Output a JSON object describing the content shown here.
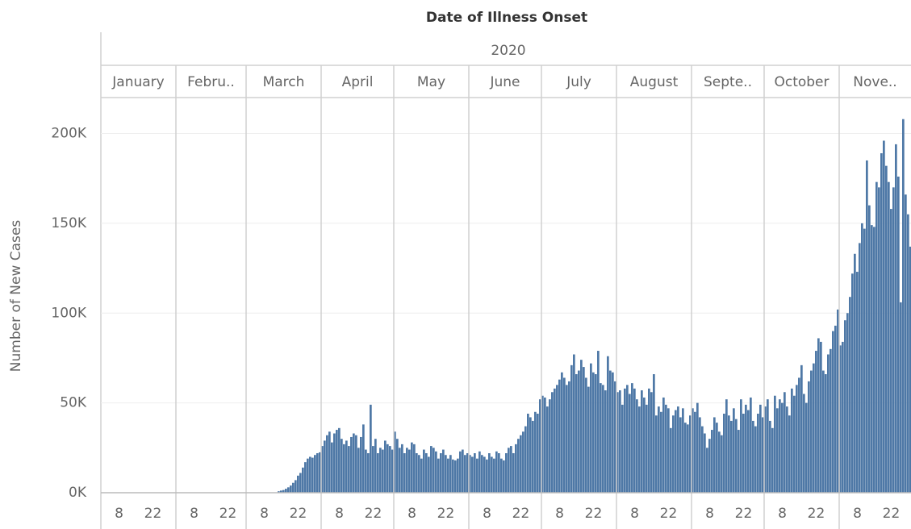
{
  "chart_data": {
    "type": "bar",
    "title": "Date of Illness Onset",
    "year_label": "2020",
    "y_label": "Number of New Cases",
    "months": [
      "January",
      "Febru..",
      "March",
      "April",
      "May",
      "June",
      "July",
      "August",
      "Septe..",
      "October",
      "Nove.."
    ],
    "day_ticks": [
      8,
      22
    ],
    "color": "#4e78a6",
    "grid": true,
    "ylim": [
      0,
      220000
    ],
    "yticks": [
      {
        "value": 0,
        "label": "0K"
      },
      {
        "value": 50000,
        "label": "50K"
      },
      {
        "value": 100000,
        "label": "100K"
      },
      {
        "value": 150000,
        "label": "150K"
      },
      {
        "value": 200000,
        "label": "200K"
      }
    ],
    "x": [
      "2020-01-01",
      "2020-01-02",
      "2020-01-03",
      "2020-01-04",
      "2020-01-05",
      "2020-01-06",
      "2020-01-07",
      "2020-01-08",
      "2020-01-09",
      "2020-01-10",
      "2020-01-11",
      "2020-01-12",
      "2020-01-13",
      "2020-01-14",
      "2020-01-15",
      "2020-01-16",
      "2020-01-17",
      "2020-01-18",
      "2020-01-19",
      "2020-01-20",
      "2020-01-21",
      "2020-01-22",
      "2020-01-23",
      "2020-01-24",
      "2020-01-25",
      "2020-01-26",
      "2020-01-27",
      "2020-01-28",
      "2020-01-29",
      "2020-01-30",
      "2020-01-31",
      "2020-02-01",
      "2020-02-02",
      "2020-02-03",
      "2020-02-04",
      "2020-02-05",
      "2020-02-06",
      "2020-02-07",
      "2020-02-08",
      "2020-02-09",
      "2020-02-10",
      "2020-02-11",
      "2020-02-12",
      "2020-02-13",
      "2020-02-14",
      "2020-02-15",
      "2020-02-16",
      "2020-02-17",
      "2020-02-18",
      "2020-02-19",
      "2020-02-20",
      "2020-02-21",
      "2020-02-22",
      "2020-02-23",
      "2020-02-24",
      "2020-02-25",
      "2020-02-26",
      "2020-02-27",
      "2020-02-28",
      "2020-02-29",
      "2020-03-01",
      "2020-03-02",
      "2020-03-03",
      "2020-03-04",
      "2020-03-05",
      "2020-03-06",
      "2020-03-07",
      "2020-03-08",
      "2020-03-09",
      "2020-03-10",
      "2020-03-11",
      "2020-03-12",
      "2020-03-13",
      "2020-03-14",
      "2020-03-15",
      "2020-03-16",
      "2020-03-17",
      "2020-03-18",
      "2020-03-19",
      "2020-03-20",
      "2020-03-21",
      "2020-03-22",
      "2020-03-23",
      "2020-03-24",
      "2020-03-25",
      "2020-03-26",
      "2020-03-27",
      "2020-03-28",
      "2020-03-29",
      "2020-03-30",
      "2020-03-31",
      "2020-04-01",
      "2020-04-02",
      "2020-04-03",
      "2020-04-04",
      "2020-04-05",
      "2020-04-06",
      "2020-04-07",
      "2020-04-08",
      "2020-04-09",
      "2020-04-10",
      "2020-04-11",
      "2020-04-12",
      "2020-04-13",
      "2020-04-14",
      "2020-04-15",
      "2020-04-16",
      "2020-04-17",
      "2020-04-18",
      "2020-04-19",
      "2020-04-20",
      "2020-04-21",
      "2020-04-22",
      "2020-04-23",
      "2020-04-24",
      "2020-04-25",
      "2020-04-26",
      "2020-04-27",
      "2020-04-28",
      "2020-04-29",
      "2020-04-30",
      "2020-05-01",
      "2020-05-02",
      "2020-05-03",
      "2020-05-04",
      "2020-05-05",
      "2020-05-06",
      "2020-05-07",
      "2020-05-08",
      "2020-05-09",
      "2020-05-10",
      "2020-05-11",
      "2020-05-12",
      "2020-05-13",
      "2020-05-14",
      "2020-05-15",
      "2020-05-16",
      "2020-05-17",
      "2020-05-18",
      "2020-05-19",
      "2020-05-20",
      "2020-05-21",
      "2020-05-22",
      "2020-05-23",
      "2020-05-24",
      "2020-05-25",
      "2020-05-26",
      "2020-05-27",
      "2020-05-28",
      "2020-05-29",
      "2020-05-30",
      "2020-05-31",
      "2020-06-01",
      "2020-06-02",
      "2020-06-03",
      "2020-06-04",
      "2020-06-05",
      "2020-06-06",
      "2020-06-07",
      "2020-06-08",
      "2020-06-09",
      "2020-06-10",
      "2020-06-11",
      "2020-06-12",
      "2020-06-13",
      "2020-06-14",
      "2020-06-15",
      "2020-06-16",
      "2020-06-17",
      "2020-06-18",
      "2020-06-19",
      "2020-06-20",
      "2020-06-21",
      "2020-06-22",
      "2020-06-23",
      "2020-06-24",
      "2020-06-25",
      "2020-06-26",
      "2020-06-27",
      "2020-06-28",
      "2020-06-29",
      "2020-06-30",
      "2020-07-01",
      "2020-07-02",
      "2020-07-03",
      "2020-07-04",
      "2020-07-05",
      "2020-07-06",
      "2020-07-07",
      "2020-07-08",
      "2020-07-09",
      "2020-07-10",
      "2020-07-11",
      "2020-07-12",
      "2020-07-13",
      "2020-07-14",
      "2020-07-15",
      "2020-07-16",
      "2020-07-17",
      "2020-07-18",
      "2020-07-19",
      "2020-07-20",
      "2020-07-21",
      "2020-07-22",
      "2020-07-23",
      "2020-07-24",
      "2020-07-25",
      "2020-07-26",
      "2020-07-27",
      "2020-07-28",
      "2020-07-29",
      "2020-07-30",
      "2020-07-31",
      "2020-08-01",
      "2020-08-02",
      "2020-08-03",
      "2020-08-04",
      "2020-08-05",
      "2020-08-06",
      "2020-08-07",
      "2020-08-08",
      "2020-08-09",
      "2020-08-10",
      "2020-08-11",
      "2020-08-12",
      "2020-08-13",
      "2020-08-14",
      "2020-08-15",
      "2020-08-16",
      "2020-08-17",
      "2020-08-18",
      "2020-08-19",
      "2020-08-20",
      "2020-08-21",
      "2020-08-22",
      "2020-08-23",
      "2020-08-24",
      "2020-08-25",
      "2020-08-26",
      "2020-08-27",
      "2020-08-28",
      "2020-08-29",
      "2020-08-30",
      "2020-08-31",
      "2020-09-01",
      "2020-09-02",
      "2020-09-03",
      "2020-09-04",
      "2020-09-05",
      "2020-09-06",
      "2020-09-07",
      "2020-09-08",
      "2020-09-09",
      "2020-09-10",
      "2020-09-11",
      "2020-09-12",
      "2020-09-13",
      "2020-09-14",
      "2020-09-15",
      "2020-09-16",
      "2020-09-17",
      "2020-09-18",
      "2020-09-19",
      "2020-09-20",
      "2020-09-21",
      "2020-09-22",
      "2020-09-23",
      "2020-09-24",
      "2020-09-25",
      "2020-09-26",
      "2020-09-27",
      "2020-09-28",
      "2020-09-29",
      "2020-09-30",
      "2020-10-01",
      "2020-10-02",
      "2020-10-03",
      "2020-10-04",
      "2020-10-05",
      "2020-10-06",
      "2020-10-07",
      "2020-10-08",
      "2020-10-09",
      "2020-10-10",
      "2020-10-11",
      "2020-10-12",
      "2020-10-13",
      "2020-10-14",
      "2020-10-15",
      "2020-10-16",
      "2020-10-17",
      "2020-10-18",
      "2020-10-19",
      "2020-10-20",
      "2020-10-21",
      "2020-10-22",
      "2020-10-23",
      "2020-10-24",
      "2020-10-25",
      "2020-10-26",
      "2020-10-27",
      "2020-10-28",
      "2020-10-29",
      "2020-10-30",
      "2020-10-31",
      "2020-11-01",
      "2020-11-02",
      "2020-11-03",
      "2020-11-04",
      "2020-11-05",
      "2020-11-06",
      "2020-11-07",
      "2020-11-08",
      "2020-11-09",
      "2020-11-10",
      "2020-11-11",
      "2020-11-12",
      "2020-11-13",
      "2020-11-14",
      "2020-11-15",
      "2020-11-16",
      "2020-11-17",
      "2020-11-18",
      "2020-11-19",
      "2020-11-20",
      "2020-11-21",
      "2020-11-22",
      "2020-11-23",
      "2020-11-24",
      "2020-11-25",
      "2020-11-26",
      "2020-11-27",
      "2020-11-28",
      "2020-11-29",
      "2020-11-30"
    ],
    "values": [
      0,
      0,
      0,
      0,
      0,
      0,
      0,
      0,
      0,
      0,
      0,
      0,
      0,
      0,
      0,
      0,
      0,
      0,
      0,
      0,
      0,
      0,
      0,
      0,
      0,
      0,
      0,
      0,
      0,
      0,
      0,
      0,
      0,
      0,
      0,
      0,
      0,
      0,
      0,
      0,
      0,
      0,
      0,
      0,
      0,
      0,
      0,
      0,
      0,
      0,
      0,
      0,
      0,
      0,
      0,
      0,
      0,
      0,
      0,
      0,
      0,
      0,
      0,
      0,
      0,
      0,
      0,
      0,
      0,
      0,
      0,
      0,
      100,
      800,
      1200,
      1500,
      2200,
      3000,
      4000,
      5500,
      7000,
      9500,
      11000,
      14000,
      17000,
      19000,
      20000,
      19500,
      21000,
      22000,
      22500,
      26000,
      29000,
      32000,
      34000,
      28000,
      33000,
      35000,
      36000,
      30000,
      27000,
      29000,
      26000,
      31000,
      33000,
      32000,
      25000,
      31000,
      38000,
      24000,
      22000,
      49000,
      26000,
      30000,
      22000,
      25000,
      24000,
      29000,
      27000,
      26000,
      24000,
      34000,
      30000,
      25000,
      27000,
      22000,
      25000,
      24000,
      28000,
      27000,
      22000,
      21000,
      19000,
      24000,
      22000,
      20000,
      26000,
      25000,
      23000,
      19000,
      22000,
      24000,
      21000,
      19000,
      21000,
      18500,
      18000,
      19000,
      23000,
      24000,
      21000,
      22000,
      21000,
      20000,
      22000,
      19000,
      23000,
      21000,
      20000,
      18500,
      22000,
      20000,
      19000,
      23000,
      22000,
      19000,
      18000,
      22000,
      25000,
      26000,
      22000,
      27000,
      30000,
      32000,
      34000,
      37000,
      44000,
      42000,
      40000,
      45000,
      44000,
      52000,
      54000,
      53000,
      48000,
      52000,
      56000,
      58000,
      60000,
      63000,
      67000,
      64000,
      60000,
      62000,
      71000,
      77000,
      66000,
      68000,
      74000,
      70000,
      64000,
      59000,
      72000,
      67000,
      66000,
      79000,
      61000,
      60000,
      57000,
      76000,
      68000,
      67000,
      62000,
      56000,
      57000,
      49000,
      58000,
      60000,
      55000,
      61000,
      58000,
      52000,
      48000,
      57000,
      53000,
      49000,
      58000,
      56000,
      66000,
      43000,
      48000,
      45000,
      53000,
      49000,
      47000,
      36000,
      43000,
      46000,
      48000,
      42000,
      47000,
      39000,
      38000,
      43000,
      47000,
      45000,
      50000,
      42000,
      37000,
      33000,
      25000,
      30000,
      35000,
      42000,
      39000,
      34000,
      32000,
      44000,
      52000,
      43000,
      40000,
      47000,
      41000,
      35000,
      52000,
      44000,
      49000,
      46000,
      53000,
      40000,
      37000,
      44000,
      49000,
      42000,
      48000,
      52000,
      40000,
      36000,
      54000,
      47000,
      52000,
      50000,
      56000,
      48000,
      43000,
      58000,
      54000,
      60000,
      64000,
      71000,
      55000,
      50000,
      62000,
      68000,
      72000,
      79000,
      86000,
      84000,
      68000,
      66000,
      77000,
      80000,
      90000,
      93000,
      102000,
      82000,
      84000,
      96000,
      100000,
      109000,
      122000,
      133000,
      123000,
      139000,
      150000,
      147000,
      185000,
      160000,
      149000,
      148000,
      173000,
      170000,
      189000,
      196000,
      182000,
      173000,
      158000,
      170000,
      194000,
      176000,
      106000,
      208000,
      166000,
      155000,
      137000
    ]
  }
}
